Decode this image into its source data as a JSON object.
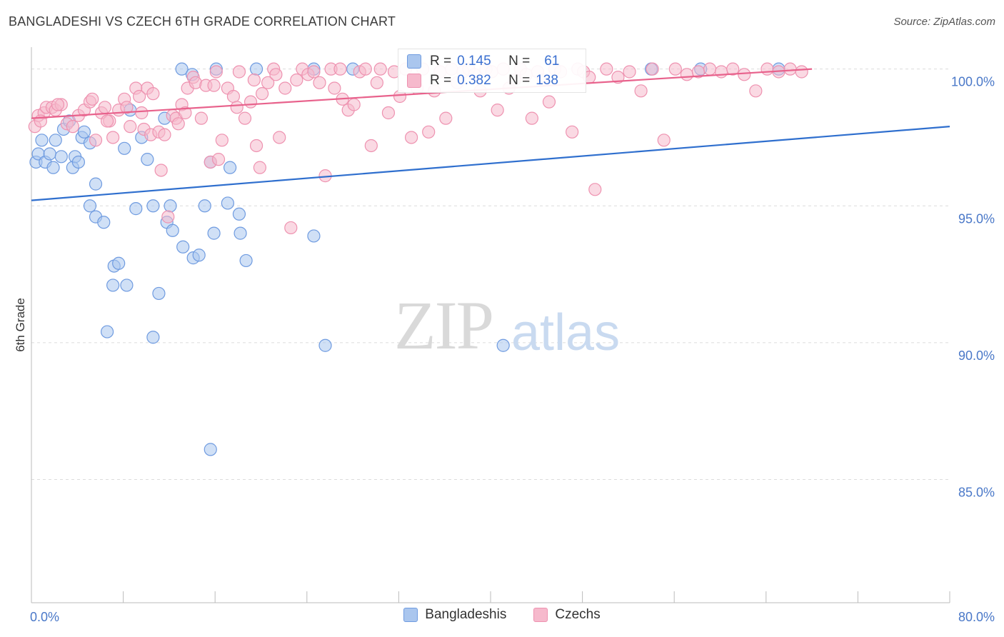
{
  "header": {
    "title": "BANGLADESHI VS CZECH 6TH GRADE CORRELATION CHART",
    "source": "Source: ZipAtlas.com"
  },
  "watermark": {
    "zip": "ZIP",
    "atlas": "atlas"
  },
  "stats": {
    "r_label": "R =",
    "n_label": "N =",
    "bangladeshis": {
      "r": "0.145",
      "n": "61"
    },
    "czechs": {
      "r": "0.382",
      "n": "138"
    }
  },
  "legend": {
    "bangladeshis": "Bangladeshis",
    "czechs": "Czechs"
  },
  "colors": {
    "blue_fill": "#aac6ee",
    "blue_stroke": "#6f9be0",
    "blue_line": "#2f6fce",
    "pink_fill": "#f6b9cc",
    "pink_stroke": "#ee92b0",
    "pink_line": "#e8628c",
    "grid": "#dcdcdc",
    "tick_text": "#4a78c8"
  },
  "chart_data": {
    "type": "scatter",
    "title": "BANGLADESHI VS CZECH 6TH GRADE CORRELATION CHART",
    "xlabel": "",
    "ylabel": "6th Grade",
    "xlim": [
      0,
      80
    ],
    "ylim": [
      80.5,
      100.8
    ],
    "y_ticks": [
      100,
      95,
      90,
      85
    ],
    "y_tick_labels": [
      "100.0%",
      "95.0%",
      "90.0%",
      "85.0%"
    ],
    "x_tick_labels": [
      "0.0%",
      "80.0%"
    ],
    "grid": true,
    "series": [
      {
        "name": "Bangladeshis",
        "trend": [
          [
            0,
            95.2
          ],
          [
            80,
            97.9
          ]
        ],
        "points": [
          [
            0.4,
            96.6
          ],
          [
            0.6,
            96.9
          ],
          [
            0.9,
            97.4
          ],
          [
            1.2,
            96.6
          ],
          [
            1.6,
            96.9
          ],
          [
            1.9,
            96.4
          ],
          [
            2.1,
            97.4
          ],
          [
            2.6,
            96.8
          ],
          [
            2.8,
            97.8
          ],
          [
            3.3,
            98.1
          ],
          [
            3.6,
            96.4
          ],
          [
            3.8,
            96.8
          ],
          [
            4.1,
            96.6
          ],
          [
            4.4,
            97.5
          ],
          [
            4.6,
            97.7
          ],
          [
            5.1,
            97.3
          ],
          [
            5.6,
            95.8
          ],
          [
            5.1,
            95.0
          ],
          [
            5.6,
            94.6
          ],
          [
            6.3,
            94.4
          ],
          [
            6.6,
            90.4
          ],
          [
            7.1,
            92.1
          ],
          [
            7.2,
            92.8
          ],
          [
            7.6,
            92.9
          ],
          [
            8.1,
            97.1
          ],
          [
            8.3,
            92.1
          ],
          [
            8.6,
            98.5
          ],
          [
            9.1,
            94.9
          ],
          [
            9.6,
            97.5
          ],
          [
            10.1,
            96.7
          ],
          [
            10.6,
            90.2
          ],
          [
            10.6,
            95.0
          ],
          [
            11.1,
            91.8
          ],
          [
            11.6,
            98.2
          ],
          [
            11.8,
            94.4
          ],
          [
            12.1,
            95.0
          ],
          [
            12.3,
            94.1
          ],
          [
            13.1,
            100.0
          ],
          [
            13.2,
            93.5
          ],
          [
            14.0,
            99.8
          ],
          [
            14.1,
            93.1
          ],
          [
            14.6,
            93.2
          ],
          [
            15.1,
            95.0
          ],
          [
            15.6,
            86.1
          ],
          [
            15.6,
            96.6
          ],
          [
            15.9,
            94.0
          ],
          [
            16.1,
            100.0
          ],
          [
            17.1,
            95.1
          ],
          [
            17.3,
            96.4
          ],
          [
            18.1,
            94.7
          ],
          [
            18.2,
            94.0
          ],
          [
            18.7,
            93.0
          ],
          [
            19.6,
            100.0
          ],
          [
            24.6,
            100.0
          ],
          [
            24.6,
            93.9
          ],
          [
            25.6,
            89.9
          ],
          [
            28.0,
            100.0
          ],
          [
            41.1,
            89.9
          ],
          [
            54.0,
            100.0
          ],
          [
            58.3,
            100.0
          ],
          [
            65.1,
            100.0
          ]
        ]
      },
      {
        "name": "Czechs",
        "trend": [
          [
            0,
            98.2
          ],
          [
            68,
            100.0
          ]
        ],
        "points": [
          [
            0.3,
            97.9
          ],
          [
            0.6,
            98.3
          ],
          [
            1.1,
            98.4
          ],
          [
            1.3,
            98.6
          ],
          [
            1.8,
            98.6
          ],
          [
            2.1,
            98.5
          ],
          [
            2.6,
            98.7
          ],
          [
            3.1,
            98.0
          ],
          [
            3.6,
            97.9
          ],
          [
            4.1,
            98.3
          ],
          [
            4.6,
            98.5
          ],
          [
            5.1,
            98.8
          ],
          [
            5.3,
            98.9
          ],
          [
            5.6,
            97.4
          ],
          [
            6.1,
            98.4
          ],
          [
            6.4,
            98.6
          ],
          [
            6.8,
            98.1
          ],
          [
            7.1,
            97.5
          ],
          [
            7.6,
            98.5
          ],
          [
            8.1,
            98.9
          ],
          [
            8.3,
            98.6
          ],
          [
            8.6,
            97.9
          ],
          [
            9.1,
            99.3
          ],
          [
            9.4,
            99.0
          ],
          [
            9.6,
            98.4
          ],
          [
            9.8,
            97.8
          ],
          [
            10.1,
            99.3
          ],
          [
            10.4,
            97.6
          ],
          [
            10.6,
            99.1
          ],
          [
            11.1,
            97.7
          ],
          [
            11.3,
            96.3
          ],
          [
            11.6,
            97.6
          ],
          [
            11.9,
            94.6
          ],
          [
            12.3,
            98.3
          ],
          [
            12.6,
            98.2
          ],
          [
            12.8,
            98.0
          ],
          [
            13.1,
            98.7
          ],
          [
            13.4,
            98.4
          ],
          [
            13.6,
            99.3
          ],
          [
            14.1,
            99.7
          ],
          [
            14.3,
            99.5
          ],
          [
            14.8,
            98.2
          ],
          [
            15.2,
            99.4
          ],
          [
            15.6,
            96.6
          ],
          [
            15.9,
            99.4
          ],
          [
            16.1,
            99.9
          ],
          [
            16.3,
            96.7
          ],
          [
            16.6,
            97.4
          ],
          [
            17.1,
            99.3
          ],
          [
            17.6,
            99.0
          ],
          [
            17.9,
            98.6
          ],
          [
            18.1,
            99.9
          ],
          [
            18.6,
            98.2
          ],
          [
            19.1,
            98.8
          ],
          [
            19.4,
            99.6
          ],
          [
            19.6,
            97.2
          ],
          [
            19.9,
            96.4
          ],
          [
            20.1,
            99.1
          ],
          [
            20.6,
            99.5
          ],
          [
            21.1,
            100.0
          ],
          [
            21.3,
            99.8
          ],
          [
            21.6,
            97.5
          ],
          [
            22.1,
            99.3
          ],
          [
            22.6,
            94.2
          ],
          [
            23.1,
            99.6
          ],
          [
            23.6,
            100.0
          ],
          [
            24.1,
            99.8
          ],
          [
            24.6,
            99.9
          ],
          [
            25.1,
            99.5
          ],
          [
            25.6,
            96.1
          ],
          [
            26.1,
            100.0
          ],
          [
            26.4,
            99.3
          ],
          [
            26.9,
            100.0
          ],
          [
            27.1,
            98.9
          ],
          [
            27.6,
            98.5
          ],
          [
            28.1,
            98.7
          ],
          [
            28.6,
            99.9
          ],
          [
            29.1,
            100.0
          ],
          [
            29.6,
            97.2
          ],
          [
            30.1,
            99.5
          ],
          [
            30.4,
            100.0
          ],
          [
            31.1,
            98.4
          ],
          [
            31.6,
            99.9
          ],
          [
            32.1,
            99.0
          ],
          [
            32.6,
            100.0
          ],
          [
            33.1,
            97.5
          ],
          [
            33.6,
            99.3
          ],
          [
            34.1,
            100.0
          ],
          [
            34.6,
            97.7
          ],
          [
            35.1,
            99.2
          ],
          [
            35.6,
            99.9
          ],
          [
            36.1,
            98.2
          ],
          [
            36.6,
            100.0
          ],
          [
            37.1,
            99.5
          ],
          [
            37.6,
            99.9
          ],
          [
            38.1,
            100.0
          ],
          [
            38.6,
            99.8
          ],
          [
            39.1,
            99.2
          ],
          [
            39.6,
            100.0
          ],
          [
            40.1,
            99.9
          ],
          [
            40.6,
            98.5
          ],
          [
            41.1,
            100.0
          ],
          [
            41.6,
            99.3
          ],
          [
            42.1,
            99.6
          ],
          [
            42.6,
            100.0
          ],
          [
            43.1,
            99.8
          ],
          [
            43.6,
            98.2
          ],
          [
            44.1,
            99.9
          ],
          [
            44.6,
            99.6
          ],
          [
            45.1,
            98.8
          ],
          [
            45.6,
            100.0
          ],
          [
            46.1,
            99.9
          ],
          [
            47.1,
            97.7
          ],
          [
            47.6,
            100.0
          ],
          [
            48.1,
            99.9
          ],
          [
            48.6,
            99.7
          ],
          [
            49.1,
            95.6
          ],
          [
            50.1,
            100.0
          ],
          [
            51.1,
            99.7
          ],
          [
            52.1,
            99.9
          ],
          [
            53.1,
            99.2
          ],
          [
            54.1,
            100.0
          ],
          [
            55.1,
            97.4
          ],
          [
            56.1,
            100.0
          ],
          [
            57.1,
            99.8
          ],
          [
            58.1,
            99.9
          ],
          [
            59.1,
            100.0
          ],
          [
            60.1,
            99.9
          ],
          [
            61.1,
            100.0
          ],
          [
            62.1,
            99.8
          ],
          [
            63.1,
            99.2
          ],
          [
            64.1,
            100.0
          ],
          [
            65.1,
            99.9
          ],
          [
            66.1,
            100.0
          ],
          [
            67.1,
            99.9
          ],
          [
            0.8,
            98.1
          ],
          [
            2.3,
            98.7
          ],
          [
            6.6,
            98.1
          ]
        ]
      }
    ]
  }
}
